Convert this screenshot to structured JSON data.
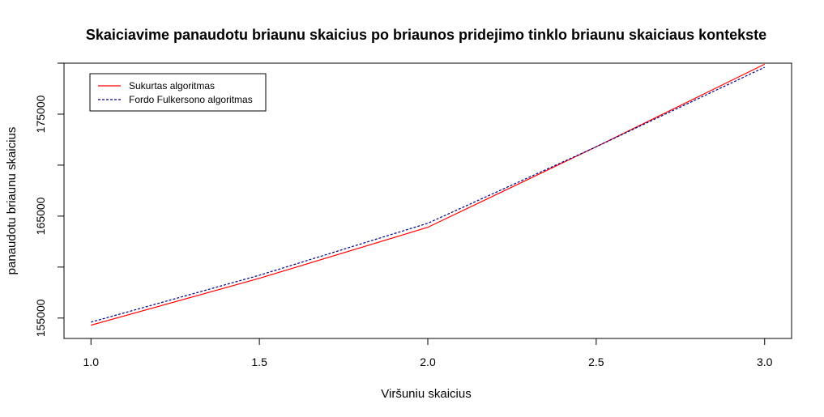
{
  "chart_data": {
    "type": "line",
    "title": "Skaiciavime panaudotu briaunu skaicius po briaunos pridejimo tinklo briaunu skaiciaus kontekste",
    "xlabel": "Viršuniu skaicius",
    "ylabel": "panaudotu briaunu skaicius",
    "xlim": [
      0.92,
      3.08
    ],
    "ylim": [
      153000,
      180000
    ],
    "x_ticks": [
      1.0,
      1.5,
      2.0,
      2.5,
      3.0
    ],
    "x_tick_labels": [
      "1.0",
      "1.5",
      "2.0",
      "2.5",
      "3.0"
    ],
    "y_ticks": [
      155000,
      160000,
      165000,
      170000,
      175000,
      180000
    ],
    "y_tick_labels": [
      "155000",
      "",
      "165000",
      "",
      "175000",
      ""
    ],
    "grid": false,
    "legend_position": "top-left",
    "series": [
      {
        "name": "Sukurtas algoritmas",
        "color": "#ff0000",
        "dash": "solid",
        "x": [
          1.0,
          1.5,
          2.0,
          2.5,
          3.0
        ],
        "y": [
          154300,
          158900,
          163900,
          171800,
          179900
        ]
      },
      {
        "name": "Fordo Fulkersono algoritmas",
        "color": "#00008b",
        "dash": "dashed",
        "x": [
          1.0,
          1.5,
          2.0,
          2.5,
          3.0
        ],
        "y": [
          154600,
          159200,
          164300,
          171800,
          179600
        ]
      }
    ]
  }
}
